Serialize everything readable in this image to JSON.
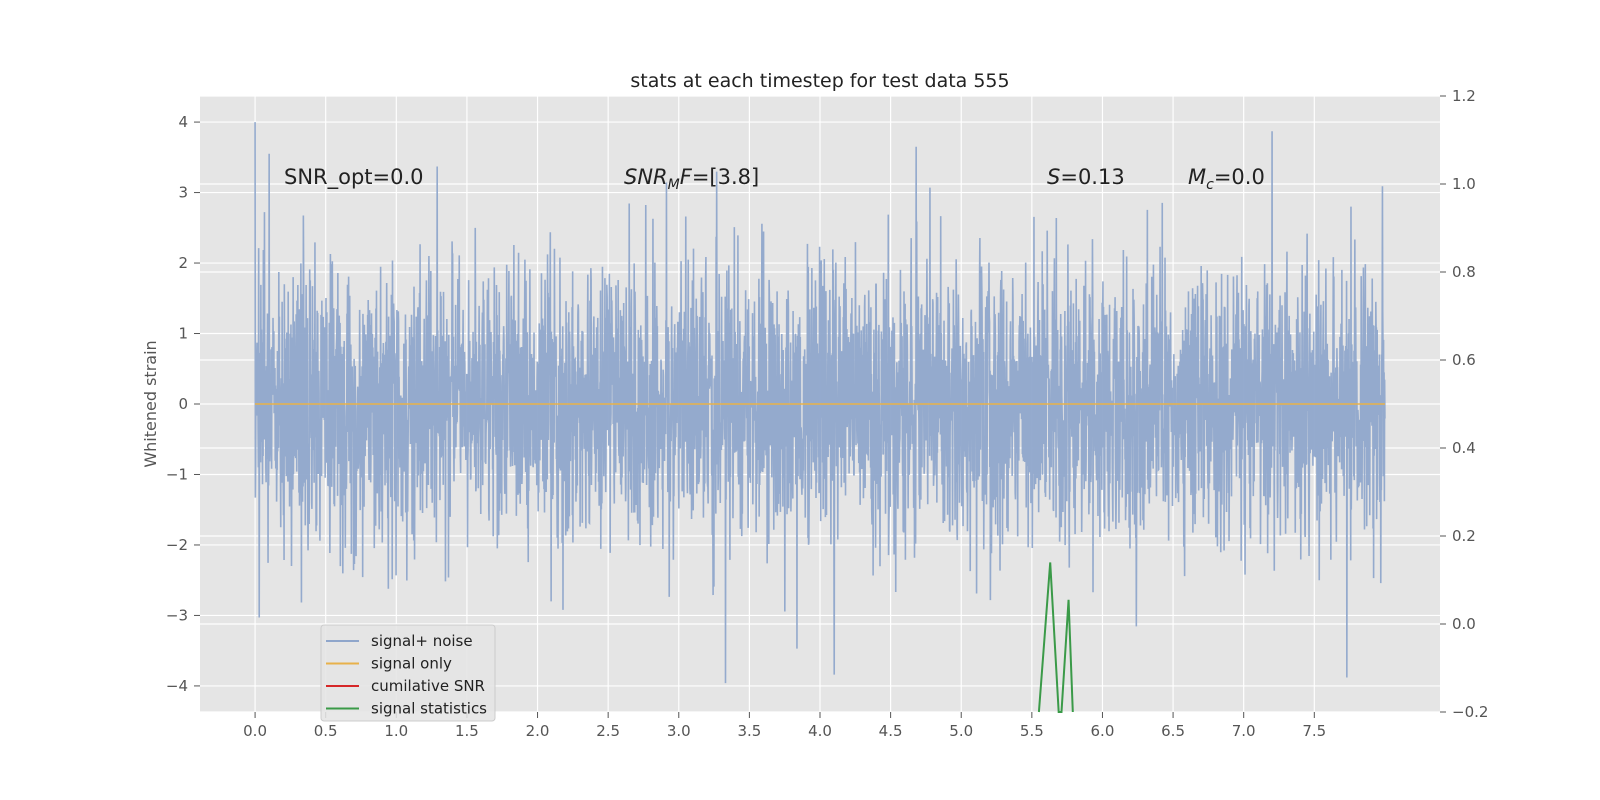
{
  "chart_data": {
    "type": "line",
    "title": "stats at each timestep for test data 555",
    "ylabel": "Whitened strain",
    "xlabel": "",
    "x_range": [
      0,
      8
    ],
    "xlim": [
      -0.39,
      8.39
    ],
    "ylim_left": [
      -4.37,
      4.37
    ],
    "ylim_right": [
      -0.2,
      1.2
    ],
    "x_ticks": [
      "0.0",
      "0.5",
      "1.0",
      "1.5",
      "2.0",
      "2.5",
      "3.0",
      "3.5",
      "4.0",
      "4.5",
      "5.0",
      "5.5",
      "6.0",
      "6.5",
      "7.0",
      "7.5"
    ],
    "y_ticks_left": [
      "4",
      "3",
      "2",
      "1",
      "0",
      "−1",
      "−2",
      "−3",
      "−4"
    ],
    "y_ticks_right": [
      "1.2",
      "1.0",
      "0.8",
      "0.6",
      "0.4",
      "0.2",
      "0.0",
      "−0.2"
    ],
    "grid": true,
    "legend_position": "lower-left",
    "annotations": {
      "snr_opt": "SNR_opt=0.0",
      "snr_mf_main": "SNR",
      "snr_mf_sub": "M",
      "snr_mf_rest": "F=[3.8]",
      "s_sym": "S",
      "s_val": "=0.13",
      "mc_main": "M",
      "mc_sub": "c",
      "mc_val": "=0.0"
    },
    "series": [
      {
        "name": "signal+ noise",
        "color": "#8fa6cb",
        "axis": "left",
        "description_values": "white noise, std ~1.0, range -3.96 to 4.0",
        "peak_points": [
          [
            0.0,
            4.0
          ],
          [
            0.1,
            3.55
          ],
          [
            1.29,
            3.37
          ],
          [
            4.68,
            3.65
          ],
          [
            7.2,
            3.87
          ],
          [
            0.03,
            -3.03
          ],
          [
            3.33,
            -3.96
          ],
          [
            4.1,
            -3.84
          ],
          [
            7.73,
            -3.88
          ]
        ]
      },
      {
        "name": "signal only",
        "color": "#e8b14a",
        "axis": "left",
        "values_constant": 0.0
      },
      {
        "name": "cumilative SNR",
        "color": "#d62728",
        "axis": "left",
        "values": []
      },
      {
        "name": "signal statistics",
        "color": "#3a9a48",
        "axis": "right",
        "points": [
          [
            5.55,
            -0.2
          ],
          [
            5.63,
            0.14
          ],
          [
            5.69,
            -0.2
          ],
          [
            5.71,
            -0.2
          ],
          [
            5.76,
            0.055
          ],
          [
            5.79,
            -0.2
          ]
        ]
      }
    ]
  },
  "legend_items": [
    {
      "label": "signal+ noise",
      "color": "#8fa6cb"
    },
    {
      "label": "signal only",
      "color": "#e8b14a"
    },
    {
      "label": "cumilative SNR",
      "color": "#d62728"
    },
    {
      "label": "signal statistics",
      "color": "#3a9a48"
    }
  ]
}
